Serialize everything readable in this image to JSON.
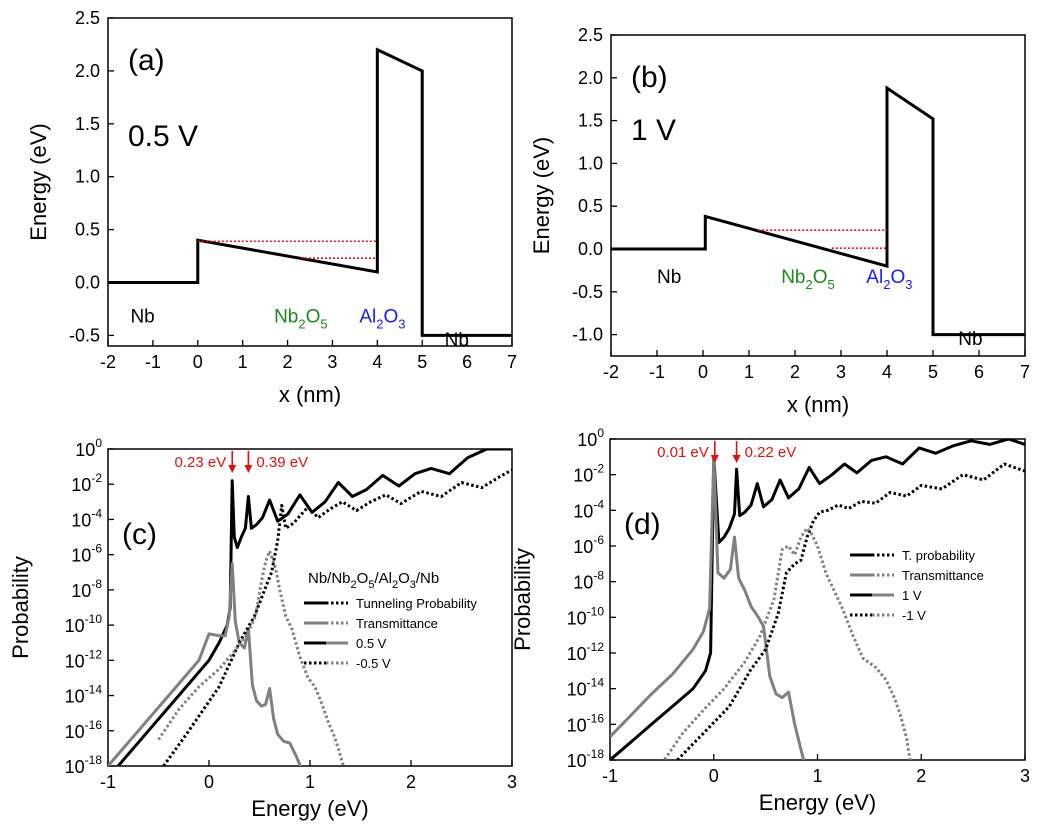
{
  "colors": {
    "black": "#000000",
    "gray": "#808080",
    "red": "#e01010",
    "green": "#1a8a1a",
    "blue": "#1a1aff"
  },
  "chart_data": [
    {
      "type": "line",
      "panel_label": "(a)",
      "voltage_label": "0.5 V",
      "xlabel": "x (nm)",
      "ylabel": "Energy (eV)",
      "xlim": [
        -2,
        7
      ],
      "ylim": [
        -0.6,
        2.5
      ],
      "xticks": [
        -2,
        -1,
        0,
        1,
        2,
        3,
        4,
        5,
        6,
        7
      ],
      "yticks": [
        -0.5,
        0.0,
        0.5,
        1.0,
        1.5,
        2.0,
        2.5
      ],
      "ytick_labels": [
        "-0.5",
        "0.0",
        "0.5",
        "1.0",
        "1.5",
        "2.0",
        "2.5"
      ],
      "region_labels": [
        {
          "text": "Nb",
          "x": -1.5,
          "y": -0.38
        },
        {
          "main": "Nb",
          "sub1": "2",
          "mid": "O",
          "sub2": "5",
          "x": 1.7,
          "y": -0.38,
          "color": "green"
        },
        {
          "main": "Al",
          "sub1": "2",
          "mid": "O",
          "sub2": "3",
          "x": 3.6,
          "y": -0.38,
          "color": "blue"
        },
        {
          "text": "Nb",
          "x": 5.5,
          "y": -0.6
        }
      ],
      "band_profile": {
        "x": [
          -2,
          0,
          0,
          4,
          4,
          5,
          5,
          7
        ],
        "y": [
          0,
          0,
          0.4,
          0.1,
          2.2,
          2.0,
          -0.5,
          -0.5
        ]
      },
      "levels": [
        {
          "x": [
            0,
            4
          ],
          "y": [
            0.39,
            0.39
          ]
        },
        {
          "x": [
            2.3,
            4
          ],
          "y": [
            0.23,
            0.23
          ]
        }
      ]
    },
    {
      "type": "line",
      "panel_label": "(b)",
      "voltage_label": "1 V",
      "xlabel": "x (nm)",
      "ylabel": "Energy (eV)",
      "xlim": [
        -2,
        7
      ],
      "ylim": [
        -1.25,
        2.5
      ],
      "xticks": [
        -2,
        -1,
        0,
        1,
        2,
        3,
        4,
        5,
        6,
        7
      ],
      "yticks": [
        -1.0,
        -0.5,
        0.0,
        0.5,
        1.0,
        1.5,
        2.0,
        2.5
      ],
      "ytick_labels": [
        "-1.0",
        "-0.5",
        "0.0",
        "0.5",
        "1.0",
        "1.5",
        "2.0",
        "2.5"
      ],
      "region_labels": [
        {
          "text": "Nb",
          "x": -1.0,
          "y": -0.4
        },
        {
          "main": "Nb",
          "sub1": "2",
          "mid": "O",
          "sub2": "5",
          "x": 1.7,
          "y": -0.4,
          "color": "green"
        },
        {
          "main": "Al",
          "sub1": "2",
          "mid": "O",
          "sub2": "3",
          "x": 3.55,
          "y": -0.4,
          "color": "blue"
        },
        {
          "text": "Nb",
          "x": 5.55,
          "y": -1.12
        }
      ],
      "band_profile": {
        "x": [
          -2,
          0.05,
          0.05,
          4,
          4,
          5,
          5,
          7
        ],
        "y": [
          0,
          0,
          0.38,
          -0.2,
          1.88,
          1.52,
          -1.0,
          -1.0
        ]
      },
      "levels": [
        {
          "x": [
            1.2,
            4
          ],
          "y": [
            0.22,
            0.22
          ]
        },
        {
          "x": [
            2.8,
            4
          ],
          "y": [
            0.01,
            0.01
          ]
        }
      ]
    },
    {
      "type": "line",
      "panel_label": "(c)",
      "xlabel": "Energy (eV)",
      "ylabel": "Probability",
      "yscale": "log",
      "xlim": [
        -1,
        3
      ],
      "ylim_exp": [
        -18,
        0
      ],
      "xticks": [
        -1,
        0,
        1,
        2,
        3
      ],
      "ytick_exps": [
        -18,
        -16,
        -14,
        -12,
        -10,
        -8,
        -6,
        -4,
        -2,
        0
      ],
      "ytick_labels": [
        "10",
        "10",
        "10",
        "10",
        "10",
        "10",
        "10",
        "10",
        "10",
        "10"
      ],
      "ytick_exp_labels": [
        "-18",
        "-16",
        "-14",
        "-12",
        "-10",
        "-8",
        "-6",
        "-4",
        "-2",
        "0"
      ],
      "annotations": [
        {
          "text": "0.23 eV",
          "x": 0.23
        },
        {
          "text": "0.39 eV",
          "x": 0.39
        }
      ],
      "legend_title_parts": [
        "Nb/Nb",
        "2",
        "O",
        "5",
        "/Al",
        "2",
        "O",
        "3",
        "/Nb"
      ],
      "legend": [
        {
          "left": "solid-black",
          "right": "dot-black",
          "label": "Tunneling Probability"
        },
        {
          "left": "solid-gray",
          "right": "dot-gray",
          "label": "Transmittance"
        },
        {
          "left": "solid-black",
          "right": "solid-gray",
          "label": "0.5 V"
        },
        {
          "left": "dot-black",
          "right": "dot-gray",
          "label": "-0.5 V"
        }
      ],
      "series": [
        {
          "name": "Tunneling Probability",
          "style": "solid-black",
          "x": [
            -0.9,
            -0.6,
            -0.3,
            0.0,
            0.1,
            0.18,
            0.21,
            0.23,
            0.25,
            0.28,
            0.32,
            0.36,
            0.39,
            0.42,
            0.47,
            0.53,
            0.6,
            0.68,
            0.78,
            0.9,
            1.02,
            1.15,
            1.28,
            1.42,
            1.56,
            1.72,
            1.88,
            2.04,
            2.2,
            2.38,
            2.56,
            2.75,
            3.0
          ],
          "y_exp": [
            -18,
            -16,
            -14,
            -12,
            -11,
            -10,
            -9,
            -1.8,
            -5,
            -5.6,
            -5,
            -4.5,
            -2.7,
            -4.5,
            -4.3,
            -3.9,
            -2.9,
            -4.1,
            -3.7,
            -2.6,
            -3.6,
            -3.0,
            -1.9,
            -2.7,
            -2.3,
            -1.5,
            -2.1,
            -1.4,
            -1.1,
            -1.4,
            -0.5,
            0,
            0
          ]
        },
        {
          "name": "Transmittance",
          "style": "solid-gray",
          "x": [
            -1.0,
            -0.7,
            -0.4,
            -0.1,
            0.0,
            0.1,
            0.16,
            0.2,
            0.23,
            0.26,
            0.3,
            0.35,
            0.39,
            0.43,
            0.47,
            0.52,
            0.56,
            0.6,
            0.64,
            0.68,
            0.74,
            0.8,
            0.86,
            0.92
          ],
          "y_exp": [
            -18,
            -16,
            -14,
            -12,
            -10.5,
            -10.6,
            -10.6,
            -9.5,
            -6.5,
            -9.8,
            -11.0,
            -11.3,
            -10.2,
            -13.4,
            -14.3,
            -14.6,
            -14.5,
            -13.6,
            -15.3,
            -16.2,
            -16.6,
            -16.7,
            -17.4,
            -18.2
          ]
        },
        {
          "name": "-0.5 V Tunneling",
          "style": "dot-black",
          "x": [
            -0.45,
            -0.2,
            0.1,
            0.3,
            0.45,
            0.55,
            0.62,
            0.68,
            0.72,
            0.76,
            0.84,
            0.9,
            0.98,
            1.08,
            1.2,
            1.32,
            1.46,
            1.6,
            1.75,
            1.9,
            2.1,
            2.3,
            2.5,
            2.7,
            2.9,
            3.0
          ],
          "y_exp": [
            -18,
            -16,
            -13.5,
            -11,
            -9.5,
            -8,
            -7,
            -5.2,
            -3.2,
            -4.5,
            -4.2,
            -3.8,
            -3.3,
            -3.9,
            -3.4,
            -3.0,
            -3.5,
            -3.0,
            -2.6,
            -3.1,
            -2.4,
            -2.7,
            -1.9,
            -2.2,
            -1.5,
            -1.2
          ]
        },
        {
          "name": "-0.5 V Transmittance",
          "style": "dot-gray",
          "x": [
            -0.5,
            -0.3,
            -0.1,
            0.1,
            0.25,
            0.38,
            0.46,
            0.52,
            0.56,
            0.6,
            0.66,
            0.7,
            0.76,
            0.82,
            0.9,
            0.98,
            1.05,
            1.12,
            1.18,
            1.24,
            1.28,
            1.32,
            1.35
          ],
          "y_exp": [
            -16.5,
            -14.8,
            -13.5,
            -12.5,
            -11.5,
            -10.5,
            -9.5,
            -7.5,
            -6.4,
            -5.8,
            -6.8,
            -8.0,
            -9.5,
            -10.2,
            -11.8,
            -13.0,
            -13.5,
            -14.5,
            -15.5,
            -16.3,
            -17.0,
            -17.8,
            -18.3
          ]
        }
      ]
    },
    {
      "type": "line",
      "panel_label": "(d)",
      "xlabel": "Energy (eV)",
      "ylabel": "Probability",
      "yscale": "log",
      "xlim": [
        -1,
        3
      ],
      "ylim_exp": [
        -18,
        0
      ],
      "xticks": [
        -1,
        0,
        1,
        2,
        3
      ],
      "ytick_exps": [
        -18,
        -16,
        -14,
        -12,
        -10,
        -8,
        -6,
        -4,
        -2,
        0
      ],
      "ytick_labels": [
        "10",
        "10",
        "10",
        "10",
        "10",
        "10",
        "10",
        "10",
        "10",
        "10"
      ],
      "ytick_exp_labels": [
        "-18",
        "-16",
        "-14",
        "-12",
        "-10",
        "-8",
        "-6",
        "-4",
        "-2",
        "0"
      ],
      "annotations": [
        {
          "text": "0.01 eV",
          "x": 0.01
        },
        {
          "text": "0.22 eV",
          "x": 0.22
        }
      ],
      "legend": [
        {
          "left": "solid-black",
          "right": "dot-black",
          "label": "T. probability"
        },
        {
          "left": "solid-gray",
          "right": "dot-gray",
          "label": "Transmittance"
        },
        {
          "left": "solid-black",
          "right": "solid-gray",
          "label": "1 V"
        },
        {
          "left": "dot-black",
          "right": "dot-gray",
          "label": "-1 V"
        }
      ],
      "series": [
        {
          "name": "T. probability",
          "style": "solid-black",
          "x": [
            -1.0,
            -0.8,
            -0.6,
            -0.4,
            -0.2,
            -0.08,
            -0.03,
            0.0,
            0.05,
            0.1,
            0.15,
            0.2,
            0.22,
            0.25,
            0.3,
            0.36,
            0.42,
            0.48,
            0.56,
            0.64,
            0.72,
            0.82,
            0.92,
            1.02,
            1.14,
            1.26,
            1.38,
            1.52,
            1.66,
            1.82,
            1.98,
            2.14,
            2.3,
            2.48,
            2.66,
            2.84,
            3.0
          ],
          "y_exp": [
            -18,
            -17,
            -16,
            -15,
            -14,
            -13,
            -12,
            -1,
            -5.8,
            -5.5,
            -5.0,
            -4.2,
            -1.7,
            -4.3,
            -4.1,
            -3.7,
            -2.5,
            -3.8,
            -3.4,
            -2.3,
            -3.3,
            -2.8,
            -1.6,
            -2.5,
            -2.0,
            -1.4,
            -1.9,
            -1.2,
            -1.0,
            -1.4,
            -0.5,
            -0.8,
            -0.4,
            -0.1,
            -0.3,
            0,
            -0.3
          ]
        },
        {
          "name": "Transmittance",
          "style": "solid-gray",
          "x": [
            -1.0,
            -0.8,
            -0.6,
            -0.4,
            -0.2,
            -0.1,
            -0.04,
            0.0,
            0.04,
            0.1,
            0.16,
            0.2,
            0.24,
            0.3,
            0.36,
            0.42,
            0.48,
            0.54,
            0.6,
            0.66,
            0.72,
            0.78,
            0.84,
            0.88
          ],
          "y_exp": [
            -16.7,
            -15.5,
            -14.3,
            -13.2,
            -11.8,
            -10.8,
            -9.5,
            -1,
            -7.5,
            -7.8,
            -7.3,
            -5.5,
            -7.8,
            -8.5,
            -9.4,
            -9.9,
            -10.5,
            -13.3,
            -14.3,
            -14.5,
            -14.2,
            -16.0,
            -17.4,
            -18.3
          ]
        },
        {
          "name": "-1 V Tunneling",
          "style": "dot-black",
          "x": [
            -0.35,
            -0.1,
            0.15,
            0.35,
            0.5,
            0.62,
            0.7,
            0.78,
            0.84,
            0.9,
            0.96,
            1.02,
            1.1,
            1.2,
            1.3,
            1.42,
            1.56,
            1.7,
            1.86,
            2.0,
            2.2,
            2.4,
            2.6,
            2.8,
            3.0
          ],
          "y_exp": [
            -18,
            -16.5,
            -15,
            -13,
            -11.8,
            -9.8,
            -7.5,
            -7.0,
            -6.8,
            -5.5,
            -4.6,
            -4.1,
            -4.0,
            -3.7,
            -3.9,
            -3.5,
            -3.6,
            -3.0,
            -3.2,
            -2.6,
            -2.8,
            -2.0,
            -2.3,
            -1.4,
            -1.8
          ]
        },
        {
          "name": "-1 V Transmittance",
          "style": "dot-gray",
          "x": [
            -0.5,
            -0.3,
            -0.1,
            0.1,
            0.3,
            0.45,
            0.58,
            0.66,
            0.72,
            0.78,
            0.84,
            0.9,
            0.94,
            1.0,
            1.08,
            1.16,
            1.24,
            1.34,
            1.44,
            1.56,
            1.66,
            1.74,
            1.8,
            1.86,
            1.9
          ],
          "y_exp": [
            -18.2,
            -16.5,
            -15.2,
            -14.0,
            -12.5,
            -11.0,
            -9.0,
            -6.2,
            -6.0,
            -6.5,
            -5.5,
            -5.0,
            -5.3,
            -6.0,
            -7.5,
            -8.5,
            -9.5,
            -11.0,
            -12.3,
            -12.8,
            -13.5,
            -14.5,
            -15.5,
            -16.8,
            -18.3
          ]
        }
      ]
    }
  ]
}
